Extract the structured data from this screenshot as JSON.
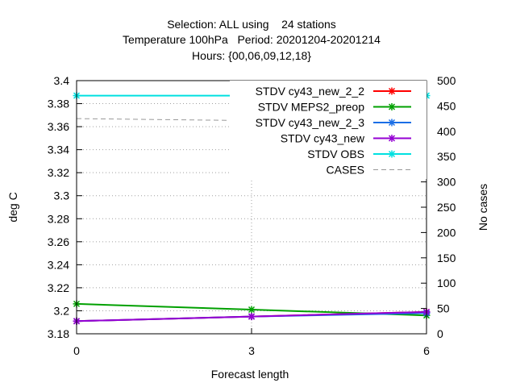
{
  "chart_data": {
    "type": "line",
    "title_lines": [
      "Selection: ALL using    24 stations",
      "Temperature 100hPa   Period: 20201204-20201214",
      "Hours: {00,06,09,12,18}"
    ],
    "xlabel": "Forecast length",
    "ylabel": "deg C",
    "y2label": "No cases",
    "x": [
      0,
      3,
      6
    ],
    "xlim": [
      0,
      6
    ],
    "ylim": [
      3.18,
      3.4
    ],
    "y2lim": [
      0,
      500
    ],
    "x_ticks": [
      0,
      3,
      6
    ],
    "y_ticks": [
      "3.18",
      "3.2",
      "3.22",
      "3.24",
      "3.26",
      "3.28",
      "3.3",
      "3.32",
      "3.34",
      "3.36",
      "3.38",
      "3.4"
    ],
    "y2_ticks": [
      "0",
      "50",
      "100",
      "150",
      "200",
      "250",
      "300",
      "350",
      "400",
      "450",
      "500"
    ],
    "grid": true,
    "legend_position": "top-right",
    "series": [
      {
        "name": "STDV cy43_new_2_2",
        "color": "#ff0000",
        "axis": "y",
        "dash": false,
        "marker": true,
        "values": [
          3.191,
          3.195,
          3.199
        ]
      },
      {
        "name": "STDV MEPS2_preop",
        "color": "#00a000",
        "axis": "y",
        "dash": false,
        "marker": true,
        "values": [
          3.206,
          3.201,
          3.196
        ]
      },
      {
        "name": "STDV cy43_new_2_3",
        "color": "#1a6ee6",
        "axis": "y",
        "dash": false,
        "marker": true,
        "values": [
          3.191,
          3.195,
          3.198
        ]
      },
      {
        "name": "STDV cy43_new",
        "color": "#9400d3",
        "axis": "y",
        "dash": false,
        "marker": true,
        "values": [
          3.191,
          3.195,
          3.199
        ]
      },
      {
        "name": "STDV OBS",
        "color": "#00e0e0",
        "axis": "y",
        "dash": false,
        "marker": true,
        "values": [
          3.387,
          3.387,
          3.387
        ]
      },
      {
        "name": "CASES",
        "color": "#999999",
        "axis": "y2",
        "dash": true,
        "marker": false,
        "values": [
          425,
          421,
          419
        ]
      }
    ]
  }
}
